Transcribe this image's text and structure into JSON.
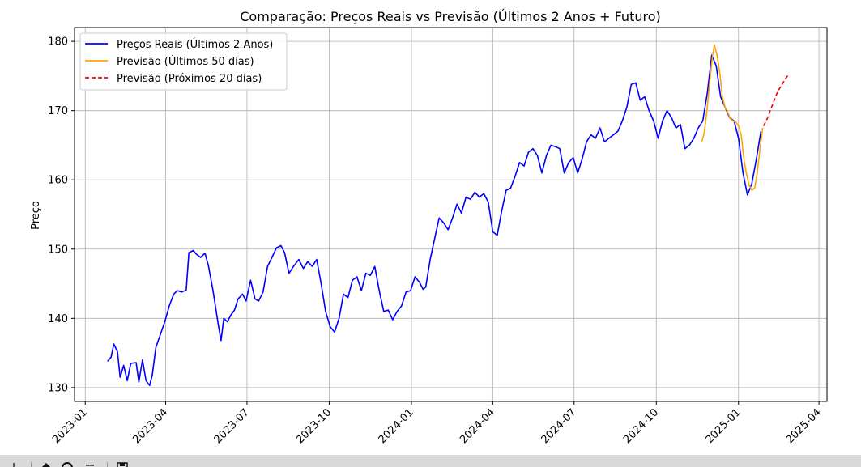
{
  "chart_data": {
    "type": "line",
    "title": "Comparação: Preços Reais vs Previsão (Últimos 2 Anos + Futuro)",
    "xlabel": "",
    "ylabel": "Preço",
    "xlim": [
      "2022-12-20",
      "2025-04-10"
    ],
    "ylim": [
      128,
      182
    ],
    "x_ticks": [
      "2023-01",
      "2023-04",
      "2023-07",
      "2023-10",
      "2024-01",
      "2024-04",
      "2024-07",
      "2024-10",
      "2025-01",
      "2025-04"
    ],
    "y_ticks": [
      130,
      140,
      150,
      160,
      170,
      180
    ],
    "grid": true,
    "legend_position": "top-left",
    "series": [
      {
        "name": "Preços Reais (Últimos 2 Anos)",
        "color": "#0000ff",
        "style": "solid",
        "points": [
          [
            "2023-01-26",
            133.8
          ],
          [
            "2023-01-30",
            134.4
          ],
          [
            "2023-02-02",
            136.3
          ],
          [
            "2023-02-06",
            135.2
          ],
          [
            "2023-02-09",
            131.5
          ],
          [
            "2023-02-13",
            133.2
          ],
          [
            "2023-02-17",
            131.0
          ],
          [
            "2023-02-21",
            133.5
          ],
          [
            "2023-02-27",
            133.6
          ],
          [
            "2023-03-02",
            130.8
          ],
          [
            "2023-03-06",
            134.0
          ],
          [
            "2023-03-10",
            131.0
          ],
          [
            "2023-03-14",
            130.3
          ],
          [
            "2023-03-17",
            131.8
          ],
          [
            "2023-03-21",
            135.8
          ],
          [
            "2023-03-27",
            138.0
          ],
          [
            "2023-03-31",
            139.5
          ],
          [
            "2023-04-05",
            141.8
          ],
          [
            "2023-04-10",
            143.5
          ],
          [
            "2023-04-14",
            144.0
          ],
          [
            "2023-04-19",
            143.8
          ],
          [
            "2023-04-24",
            144.1
          ],
          [
            "2023-04-27",
            149.5
          ],
          [
            "2023-05-02",
            149.8
          ],
          [
            "2023-05-05",
            149.3
          ],
          [
            "2023-05-10",
            148.8
          ],
          [
            "2023-05-15",
            149.4
          ],
          [
            "2023-05-19",
            147.5
          ],
          [
            "2023-05-24",
            144.0
          ],
          [
            "2023-05-30",
            139.0
          ],
          [
            "2023-06-02",
            136.8
          ],
          [
            "2023-06-05",
            140.0
          ],
          [
            "2023-06-09",
            139.5
          ],
          [
            "2023-06-13",
            140.5
          ],
          [
            "2023-06-17",
            141.2
          ],
          [
            "2023-06-21",
            142.8
          ],
          [
            "2023-06-26",
            143.5
          ],
          [
            "2023-06-30",
            142.5
          ],
          [
            "2023-07-05",
            145.5
          ],
          [
            "2023-07-10",
            142.8
          ],
          [
            "2023-07-14",
            142.5
          ],
          [
            "2023-07-19",
            143.8
          ],
          [
            "2023-07-24",
            147.5
          ],
          [
            "2023-07-29",
            148.8
          ],
          [
            "2023-08-03",
            150.2
          ],
          [
            "2023-08-08",
            150.5
          ],
          [
            "2023-08-12",
            149.5
          ],
          [
            "2023-08-17",
            146.5
          ],
          [
            "2023-08-22",
            147.5
          ],
          [
            "2023-08-28",
            148.5
          ],
          [
            "2023-09-02",
            147.2
          ],
          [
            "2023-09-07",
            148.2
          ],
          [
            "2023-09-12",
            147.5
          ],
          [
            "2023-09-17",
            148.5
          ],
          [
            "2023-09-22",
            145.0
          ],
          [
            "2023-09-27",
            141.0
          ],
          [
            "2023-10-02",
            138.8
          ],
          [
            "2023-10-07",
            138.0
          ],
          [
            "2023-10-12",
            140.0
          ],
          [
            "2023-10-17",
            143.5
          ],
          [
            "2023-10-22",
            143.0
          ],
          [
            "2023-10-27",
            145.5
          ],
          [
            "2023-11-01",
            146.0
          ],
          [
            "2023-11-06",
            144.0
          ],
          [
            "2023-11-11",
            146.5
          ],
          [
            "2023-11-16",
            146.2
          ],
          [
            "2023-11-21",
            147.5
          ],
          [
            "2023-11-26",
            144.0
          ],
          [
            "2023-12-01",
            141.0
          ],
          [
            "2023-12-06",
            141.2
          ],
          [
            "2023-12-11",
            139.8
          ],
          [
            "2023-12-16",
            141.0
          ],
          [
            "2023-12-21",
            141.8
          ],
          [
            "2023-12-26",
            143.8
          ],
          [
            "2023-12-31",
            144.0
          ],
          [
            "2024-01-05",
            146.0
          ],
          [
            "2024-01-10",
            145.2
          ],
          [
            "2024-01-14",
            144.2
          ],
          [
            "2024-01-17",
            144.5
          ],
          [
            "2024-01-22",
            148.5
          ],
          [
            "2024-01-27",
            151.5
          ],
          [
            "2024-02-01",
            154.5
          ],
          [
            "2024-02-06",
            153.8
          ],
          [
            "2024-02-11",
            152.8
          ],
          [
            "2024-02-16",
            154.5
          ],
          [
            "2024-02-21",
            156.5
          ],
          [
            "2024-02-26",
            155.2
          ],
          [
            "2024-03-02",
            157.5
          ],
          [
            "2024-03-07",
            157.2
          ],
          [
            "2024-03-12",
            158.2
          ],
          [
            "2024-03-17",
            157.5
          ],
          [
            "2024-03-22",
            158.0
          ],
          [
            "2024-03-27",
            156.8
          ],
          [
            "2024-04-01",
            152.5
          ],
          [
            "2024-04-06",
            152.0
          ],
          [
            "2024-04-11",
            155.5
          ],
          [
            "2024-04-16",
            158.5
          ],
          [
            "2024-04-21",
            158.8
          ],
          [
            "2024-04-26",
            160.5
          ],
          [
            "2024-05-01",
            162.5
          ],
          [
            "2024-05-06",
            162.0
          ],
          [
            "2024-05-11",
            164.0
          ],
          [
            "2024-05-16",
            164.5
          ],
          [
            "2024-05-21",
            163.5
          ],
          [
            "2024-05-26",
            161.0
          ],
          [
            "2024-05-31",
            163.5
          ],
          [
            "2024-06-05",
            165.0
          ],
          [
            "2024-06-10",
            164.8
          ],
          [
            "2024-06-15",
            164.5
          ],
          [
            "2024-06-20",
            161.0
          ],
          [
            "2024-06-25",
            162.5
          ],
          [
            "2024-06-30",
            163.2
          ],
          [
            "2024-07-05",
            161.0
          ],
          [
            "2024-07-10",
            163.0
          ],
          [
            "2024-07-15",
            165.5
          ],
          [
            "2024-07-20",
            166.5
          ],
          [
            "2024-07-25",
            166.0
          ],
          [
            "2024-07-30",
            167.5
          ],
          [
            "2024-08-04",
            165.5
          ],
          [
            "2024-08-09",
            166.0
          ],
          [
            "2024-08-14",
            166.5
          ],
          [
            "2024-08-19",
            167.0
          ],
          [
            "2024-08-24",
            168.5
          ],
          [
            "2024-08-29",
            170.5
          ],
          [
            "2024-09-03",
            173.8
          ],
          [
            "2024-09-08",
            174.0
          ],
          [
            "2024-09-13",
            171.5
          ],
          [
            "2024-09-18",
            172.0
          ],
          [
            "2024-09-23",
            170.0
          ],
          [
            "2024-09-28",
            168.5
          ],
          [
            "2024-10-03",
            166.0
          ],
          [
            "2024-10-08",
            168.5
          ],
          [
            "2024-10-13",
            170.0
          ],
          [
            "2024-10-18",
            169.0
          ],
          [
            "2024-10-23",
            167.5
          ],
          [
            "2024-10-28",
            168.0
          ],
          [
            "2024-11-02",
            164.5
          ],
          [
            "2024-11-07",
            165.0
          ],
          [
            "2024-11-12",
            166.0
          ],
          [
            "2024-11-17",
            167.5
          ],
          [
            "2024-11-22",
            168.5
          ],
          [
            "2024-11-27",
            172.5
          ],
          [
            "2024-12-02",
            178.0
          ],
          [
            "2024-12-07",
            176.5
          ],
          [
            "2024-12-12",
            172.0
          ],
          [
            "2024-12-17",
            170.5
          ],
          [
            "2024-12-22",
            169.0
          ],
          [
            "2024-12-27",
            168.5
          ],
          [
            "2025-01-01",
            166.0
          ],
          [
            "2025-01-06",
            161.0
          ],
          [
            "2025-01-11",
            157.8
          ],
          [
            "2025-01-16",
            159.5
          ],
          [
            "2025-01-21",
            163.0
          ],
          [
            "2025-01-26",
            167.0
          ]
        ]
      },
      {
        "name": "Previsão (Últimos 50 dias)",
        "color": "#ffa500",
        "style": "solid",
        "points": [
          [
            "2024-11-21",
            165.5
          ],
          [
            "2024-11-24",
            167.0
          ],
          [
            "2024-11-27",
            170.5
          ],
          [
            "2024-11-30",
            174.5
          ],
          [
            "2024-12-03",
            178.0
          ],
          [
            "2024-12-05",
            179.5
          ],
          [
            "2024-12-08",
            178.0
          ],
          [
            "2024-12-11",
            175.5
          ],
          [
            "2024-12-14",
            172.0
          ],
          [
            "2024-12-17",
            170.5
          ],
          [
            "2024-12-20",
            169.8
          ],
          [
            "2024-12-23",
            168.8
          ],
          [
            "2024-12-26",
            168.5
          ],
          [
            "2024-12-29",
            168.3
          ],
          [
            "2025-01-01",
            167.8
          ],
          [
            "2025-01-04",
            166.5
          ],
          [
            "2025-01-07",
            163.0
          ],
          [
            "2025-01-10",
            160.8
          ],
          [
            "2025-01-13",
            159.2
          ],
          [
            "2025-01-16",
            158.5
          ],
          [
            "2025-01-19",
            158.8
          ],
          [
            "2025-01-22",
            161.0
          ],
          [
            "2025-01-25",
            164.5
          ],
          [
            "2025-01-28",
            167.5
          ]
        ]
      },
      {
        "name": "Previsão (Próximos 20 dias)",
        "color": "#ff0000",
        "style": "dashed",
        "points": [
          [
            "2025-01-29",
            167.8
          ],
          [
            "2025-02-02",
            168.8
          ],
          [
            "2025-02-06",
            170.2
          ],
          [
            "2025-02-10",
            171.5
          ],
          [
            "2025-02-14",
            172.8
          ],
          [
            "2025-02-18",
            173.6
          ],
          [
            "2025-02-22",
            174.5
          ],
          [
            "2025-02-26",
            175.2
          ]
        ]
      }
    ]
  }
}
